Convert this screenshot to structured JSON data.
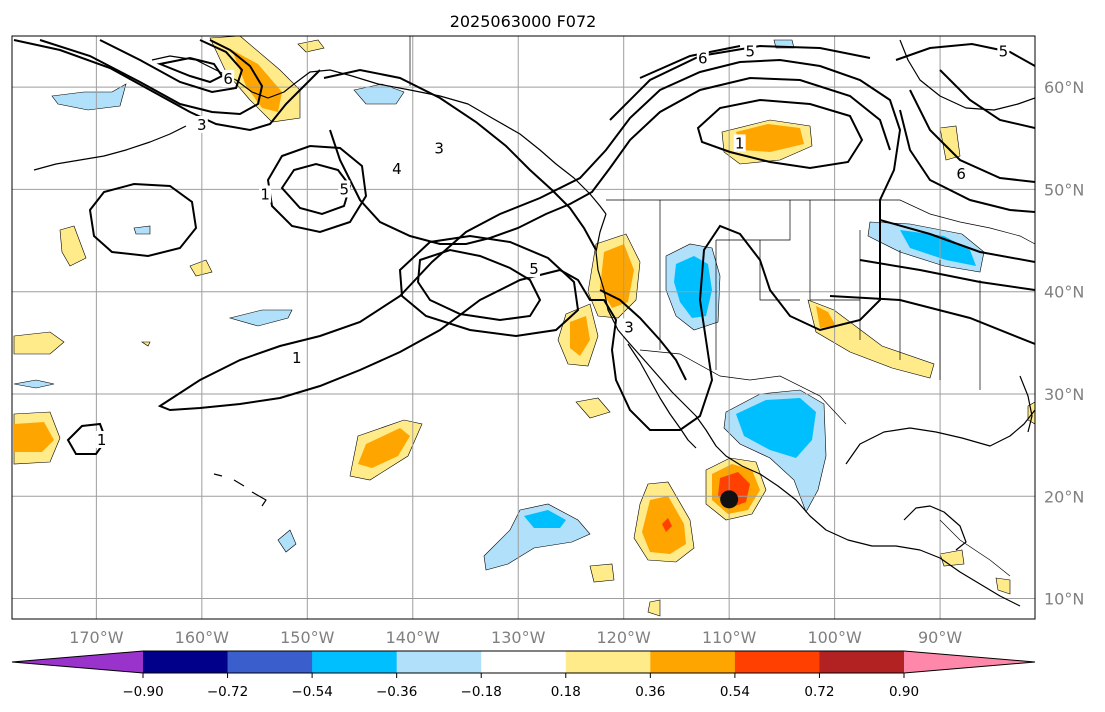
{
  "title": "2025063000 F072",
  "map": {
    "lon_range": [
      -178,
      -81
    ],
    "lat_range": [
      8,
      65
    ],
    "lon_ticks": [
      {
        "value": -170,
        "label": "170°W"
      },
      {
        "value": -160,
        "label": "160°W"
      },
      {
        "value": -150,
        "label": "150°W"
      },
      {
        "value": -140,
        "label": "140°W"
      },
      {
        "value": -130,
        "label": "130°W"
      },
      {
        "value": -120,
        "label": "120°W"
      },
      {
        "value": -110,
        "label": "110°W"
      },
      {
        "value": -100,
        "label": "100°W"
      },
      {
        "value": -90,
        "label": "90°W"
      }
    ],
    "lat_ticks": [
      {
        "value": 60,
        "label": "60°N"
      },
      {
        "value": 50,
        "label": "50°N"
      },
      {
        "value": 40,
        "label": "40°N"
      },
      {
        "value": 30,
        "label": "30°N"
      },
      {
        "value": 20,
        "label": "20°N"
      },
      {
        "value": 10,
        "label": "10°N"
      }
    ],
    "contour_labels": [
      {
        "text": "1",
        "lon": -154,
        "lat": 49.5
      },
      {
        "text": "1",
        "lon": -151,
        "lat": 33.5
      },
      {
        "text": "1",
        "lon": -169.5,
        "lat": 25.5
      },
      {
        "text": "1",
        "lon": -109,
        "lat": 54.5
      },
      {
        "text": "3",
        "lon": -160,
        "lat": 56.3
      },
      {
        "text": "3",
        "lon": -137.5,
        "lat": 54
      },
      {
        "text": "3",
        "lon": -119.5,
        "lat": 36.5
      },
      {
        "text": "4",
        "lon": -141.5,
        "lat": 52
      },
      {
        "text": "5",
        "lon": -146.5,
        "lat": 50
      },
      {
        "text": "5",
        "lon": -128.5,
        "lat": 42.2
      },
      {
        "text": "5",
        "lon": -108,
        "lat": 63.5
      },
      {
        "text": "6",
        "lon": -157.5,
        "lat": 60.8
      },
      {
        "text": "6",
        "lon": -112.5,
        "lat": 62.8
      },
      {
        "text": "6",
        "lon": -88,
        "lat": 51.5
      },
      {
        "text": "5",
        "lon": -84,
        "lat": 63.5
      }
    ],
    "storm_marker": {
      "lon": -110,
      "lat": 19.7,
      "color": "#111111"
    }
  },
  "legend": {
    "colors": [
      "#9933cc",
      "#00008b",
      "#3a5fcd",
      "#00bfff",
      "#b0e0fa",
      "#ffffff",
      "#ffeb8a",
      "#ffa500",
      "#ff4000",
      "#b22222",
      "#ff88aa"
    ],
    "tick_labels": [
      "−0.90",
      "−0.72",
      "−0.54",
      "−0.36",
      "−0.18",
      "0.18",
      "0.36",
      "0.54",
      "0.72",
      "0.90"
    ]
  }
}
